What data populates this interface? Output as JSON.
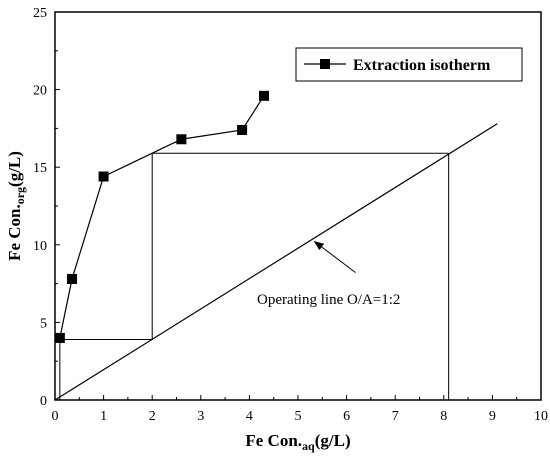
{
  "chart_data": {
    "type": "line",
    "xlabel_main": "Fe Con.",
    "xlabel_sub": "aq",
    "xlabel_unit": "(g/L)",
    "ylabel_main": "Fe Con.",
    "ylabel_sub": "org",
    "ylabel_unit": "(g/L)",
    "xlim": [
      0,
      10
    ],
    "ylim": [
      0,
      25
    ],
    "x_ticks": [
      0,
      1,
      2,
      3,
      4,
      5,
      6,
      7,
      8,
      9,
      10
    ],
    "y_ticks": [
      0,
      5,
      10,
      15,
      20,
      25
    ],
    "grid": false,
    "legend_position": "top-right",
    "series": [
      {
        "name": "Extraction isotherm",
        "marker": "square",
        "color": "#000000",
        "x": [
          0.1,
          0.35,
          1.0,
          2.6,
          3.85,
          4.3
        ],
        "y": [
          4.0,
          7.8,
          14.4,
          16.8,
          17.4,
          19.6
        ]
      }
    ],
    "operating_line": {
      "x": [
        0,
        9.1
      ],
      "y": [
        0,
        17.8
      ]
    },
    "mccabe_thiele_steps": {
      "x": [
        8.1,
        2.0,
        2.0,
        0.1,
        0.1,
        0.0
      ],
      "y": [
        15.9,
        15.9,
        3.9,
        3.9,
        0.0,
        0.0
      ]
    },
    "annotation": {
      "text": "Operating line O/A=1:2",
      "target": [
        5.3,
        10.4
      ]
    }
  }
}
